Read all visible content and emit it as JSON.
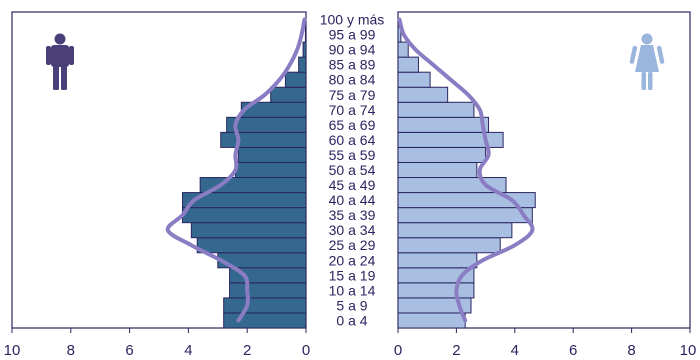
{
  "chart_data": {
    "type": "bar",
    "title": "",
    "orientation": "horizontal",
    "categories": [
      "0 a 4",
      "5 a 9",
      "10 a 14",
      "15 a 19",
      "20 a 24",
      "25 a 29",
      "30 a 34",
      "35 a 39",
      "40 a 44",
      "45 a 49",
      "50 a 54",
      "55 a 59",
      "60 a 64",
      "65 a 69",
      "70 a 74",
      "75 a 79",
      "80 a 84",
      "85 a 89",
      "90 a 94",
      "95 a 99",
      "100 y más"
    ],
    "series": [
      {
        "side": "left",
        "values": [
          2.8,
          2.8,
          2.6,
          2.6,
          3.0,
          3.7,
          3.9,
          4.2,
          4.2,
          3.6,
          2.4,
          2.3,
          2.9,
          2.7,
          2.2,
          1.2,
          0.7,
          0.25,
          0.1,
          0.02,
          0.0
        ]
      },
      {
        "side": "right",
        "values": [
          2.3,
          2.5,
          2.6,
          2.6,
          2.7,
          3.5,
          3.9,
          4.6,
          4.7,
          3.7,
          2.7,
          3.0,
          3.6,
          3.1,
          2.6,
          1.7,
          1.1,
          0.7,
          0.35,
          0.1,
          0.0
        ]
      }
    ],
    "lines": [
      {
        "side": "left",
        "values": [
          2.3,
          2.0,
          2.0,
          2.1,
          2.9,
          3.9,
          4.7,
          4.2,
          3.8,
          2.9,
          2.4,
          2.4,
          2.3,
          2.4,
          2.1,
          1.4,
          0.9,
          0.55,
          0.3,
          0.15,
          0.05
        ]
      },
      {
        "side": "right",
        "values": [
          2.3,
          2.1,
          2.0,
          2.2,
          2.9,
          4.0,
          4.6,
          4.3,
          3.9,
          3.0,
          2.8,
          3.1,
          3.0,
          2.9,
          2.8,
          2.4,
          1.8,
          1.2,
          0.6,
          0.2,
          0.05
        ]
      }
    ],
    "x_ticks_left": [
      "10",
      "8",
      "6",
      "4",
      "2",
      "0"
    ],
    "x_ticks_right": [
      "0",
      "2",
      "4",
      "6",
      "8",
      "10"
    ],
    "xlim": [
      0,
      10
    ],
    "colors": {
      "left_bar": "#35688f",
      "right_bar": "#a9bfe2",
      "bar_edge": "#2a2560",
      "line": "#8a7dc3",
      "male_icon": "#4a3f78",
      "female_icon": "#9bb6dd"
    },
    "icons": {
      "left": "male-figure-icon",
      "right": "female-figure-icon"
    }
  }
}
